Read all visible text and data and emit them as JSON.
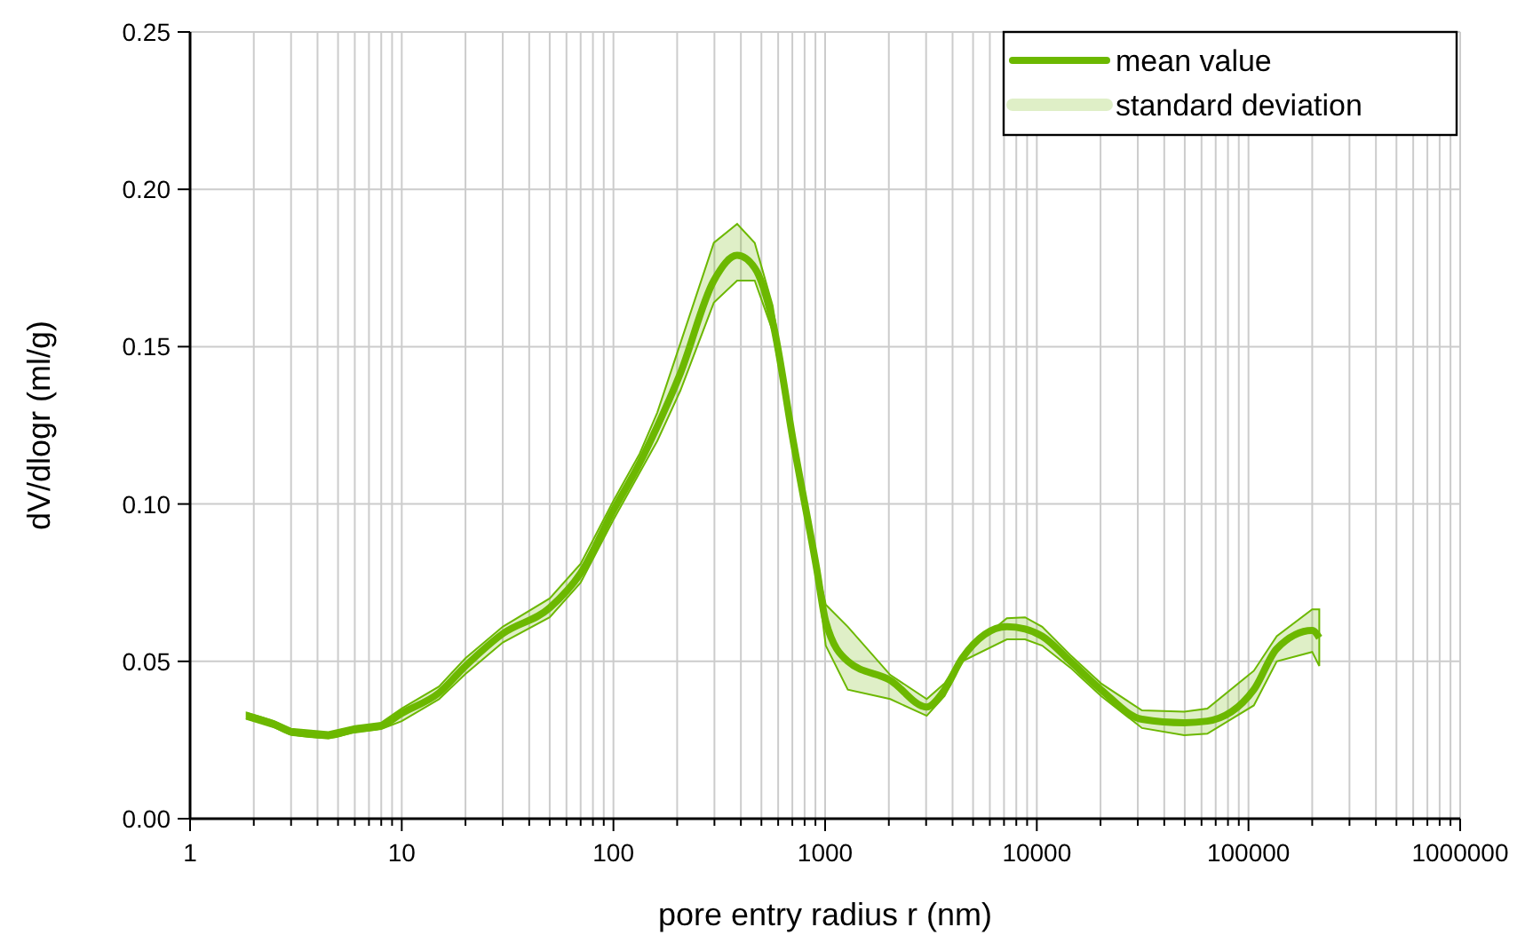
{
  "chart_data": {
    "type": "line",
    "xlabel": "pore entry radius r (nm)",
    "ylabel": "dV/dlogr (ml/g)",
    "log": "x",
    "grid": true,
    "legend": "top right",
    "xlim": [
      1,
      1000000
    ],
    "ylim": [
      0,
      0.25
    ],
    "annotations": [
      "standard deviation"
    ],
    "xticks": [
      1,
      {
        "value": 2,
        "label": null
      },
      {
        "value": 3,
        "label": null
      },
      {
        "value": 4,
        "label": null
      },
      {
        "value": 5,
        "label": null
      },
      {
        "value": 6,
        "label": null
      },
      {
        "value": 7,
        "label": null
      },
      {
        "value": 8,
        "label": null
      },
      {
        "value": 9,
        "label": null
      },
      10,
      {
        "value": 20,
        "label": null
      },
      {
        "value": 30,
        "label": null
      },
      {
        "value": 40,
        "label": null
      },
      {
        "value": 50,
        "label": null
      },
      {
        "value": 60,
        "label": null
      },
      {
        "value": 70,
        "label": null
      },
      {
        "value": 80,
        "label": null
      },
      {
        "value": 90,
        "label": null
      },
      100,
      {
        "value": 200,
        "label": null
      },
      {
        "value": 300,
        "label": null
      },
      {
        "value": 400,
        "label": null
      },
      {
        "value": 500,
        "label": null
      },
      {
        "value": 600,
        "label": null
      },
      {
        "value": 700,
        "label": null
      },
      {
        "value": 800,
        "label": null
      },
      {
        "value": 900,
        "label": null
      },
      1000,
      {
        "value": 2000,
        "label": null
      },
      {
        "value": 3000,
        "label": null
      },
      {
        "value": 4000,
        "label": null
      },
      {
        "value": 5000,
        "label": null
      },
      {
        "value": 6000,
        "label": null
      },
      {
        "value": 7000,
        "label": null
      },
      {
        "value": 8000,
        "label": null
      },
      {
        "value": 9000,
        "label": null
      },
      10000,
      {
        "value": 20000,
        "label": null
      },
      {
        "value": 30000,
        "label": null
      },
      {
        "value": 40000,
        "label": null
      },
      {
        "value": 50000,
        "label": null
      },
      {
        "value": 60000,
        "label": null
      },
      {
        "value": 70000,
        "label": null
      },
      {
        "value": 80000,
        "label": null
      },
      {
        "value": 90000,
        "label": null
      },
      100000,
      {
        "value": 200000,
        "label": null
      },
      {
        "value": 300000,
        "label": null
      },
      {
        "value": 400000,
        "label": null
      },
      {
        "value": 500000,
        "label": null
      },
      {
        "value": 600000,
        "label": null
      },
      {
        "value": 700000,
        "label": null
      },
      {
        "value": 800000,
        "label": null
      },
      {
        "value": 900000,
        "label": null
      },
      1000000
    ],
    "yticks": [
      {
        "value": 0,
        "label": "0.00"
      },
      {
        "value": 0.05,
        "label": "0.05"
      },
      {
        "value": 0.1,
        "label": "0.10"
      },
      {
        "value": 0.15,
        "label": "0.15"
      },
      {
        "value": 0.2,
        "label": "0.20"
      },
      {
        "value": 0.25,
        "label": "0.25"
      }
    ],
    "x": [
      1.85,
      2.5,
      3,
      4.5,
      6,
      8,
      10,
      15,
      20,
      30,
      50,
      70,
      100,
      133,
      161,
      207,
      298,
      384,
      465,
      565,
      711,
      912,
      1007,
      1280,
      2030,
      3020,
      3670,
      4440,
      7220,
      8800,
      10600,
      14400,
      20100,
      31400,
      49700,
      63900,
      106000,
      136000,
      200000,
      216000
    ],
    "series": [
      {
        "name": "mean value",
        "color": "#6cb800",
        "values": [
          0.0327,
          0.03,
          0.0276,
          0.0265,
          0.0284,
          0.0295,
          0.0335,
          0.04,
          0.0485,
          0.0588,
          0.067,
          0.078,
          0.098,
          0.113,
          0.1246,
          0.1415,
          0.171,
          0.179,
          0.175,
          0.158,
          0.119,
          0.0795,
          0.0626,
          0.05,
          0.044,
          0.0355,
          0.041,
          0.051,
          0.061,
          0.0603,
          0.058,
          0.05,
          0.041,
          0.0316,
          0.0305,
          0.031,
          0.041,
          0.054,
          0.0598,
          0.0575
        ],
        "lower": [
          0.0317,
          0.029,
          0.0266,
          0.0255,
          0.0274,
          0.0285,
          0.031,
          0.038,
          0.046,
          0.056,
          0.064,
          0.075,
          0.095,
          0.11,
          0.12,
          0.136,
          0.164,
          0.171,
          0.171,
          0.155,
          0.117,
          0.078,
          0.055,
          0.041,
          0.038,
          0.0327,
          0.039,
          0.05,
          0.057,
          0.057,
          0.055,
          0.048,
          0.039,
          0.0288,
          0.0265,
          0.027,
          0.036,
          0.05,
          0.053,
          0.0485
        ],
        "upper": [
          0.0337,
          0.031,
          0.0286,
          0.0275,
          0.0294,
          0.0305,
          0.035,
          0.042,
          0.051,
          0.061,
          0.07,
          0.081,
          0.101,
          0.116,
          0.129,
          0.151,
          0.183,
          0.189,
          0.183,
          0.163,
          0.121,
          0.081,
          0.068,
          0.061,
          0.0457,
          0.038,
          0.043,
          0.052,
          0.0637,
          0.064,
          0.061,
          0.052,
          0.043,
          0.0344,
          0.034,
          0.035,
          0.047,
          0.058,
          0.0665,
          0.0665
        ]
      }
    ]
  }
}
